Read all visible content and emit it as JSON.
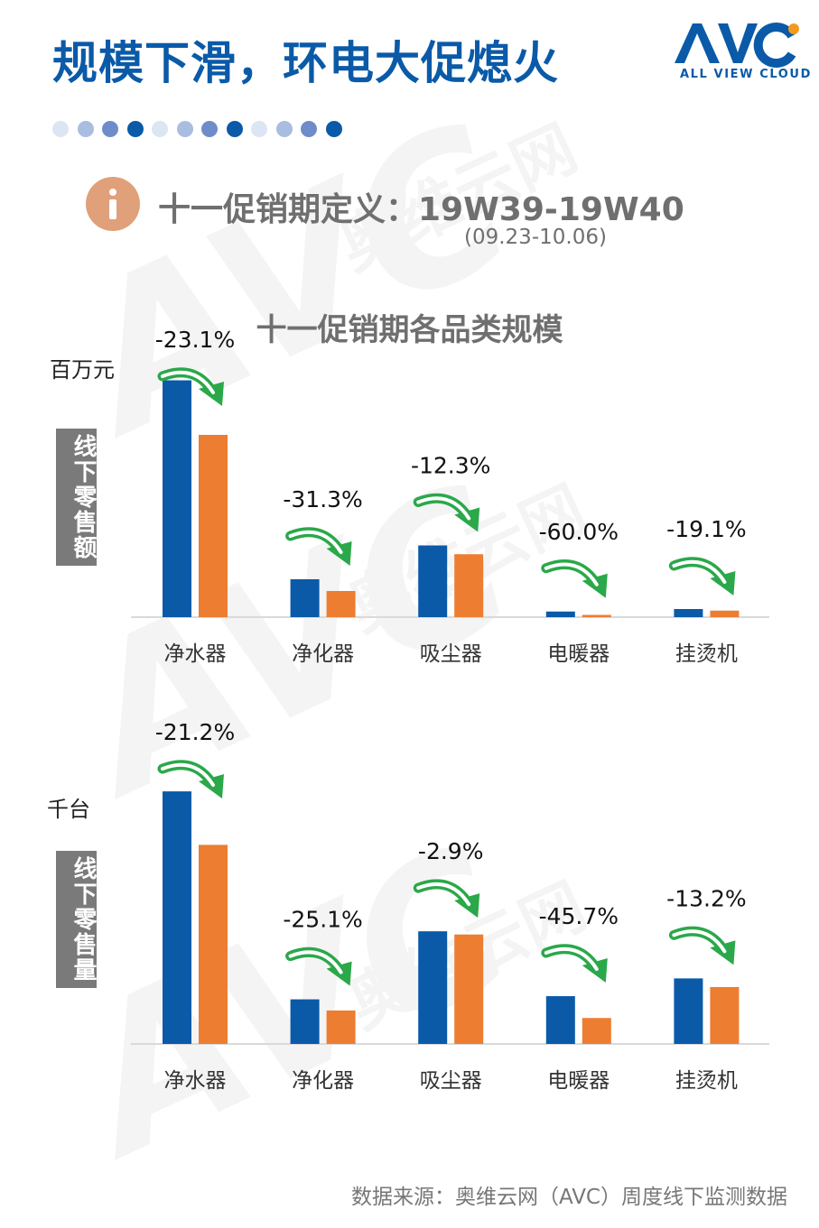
{
  "header": {
    "title": "规模下滑，环电大促熄火",
    "logo_text": "ALL VIEW CLOUD",
    "dot_colors": [
      "#dbe5f4",
      "#a9bde0",
      "#6f8cca",
      "#0a5aa8",
      "#dbe5f4",
      "#a9bde0",
      "#6f8cca",
      "#0a5aa8",
      "#dbe5f4",
      "#a9bde0",
      "#6f8cca",
      "#0a5aa8"
    ]
  },
  "info": {
    "icon": "info-icon",
    "text": "十一促销期定义：19W39-19W40",
    "sub": "(09.23-10.06)"
  },
  "chart_title": "十一促销期各品类规模",
  "footer": {
    "source": "数据来源：奥维云网（AVC）周度线下监测数据"
  },
  "colors": {
    "series_prev": "#0a5aa8",
    "series_curr": "#ed7d31",
    "arrow": "#2aa84a",
    "axis": "#d9d9d9"
  },
  "chart_data": [
    {
      "type": "bar",
      "title": "十一促销期各品类规模",
      "side_label": "线下零售额",
      "unit": "百万元",
      "categories": [
        "净水器",
        "净化器",
        "吸尘器",
        "电暖器",
        "挂烫机"
      ],
      "series": [
        {
          "values": [
            1050,
            168,
            318,
            25,
            36
          ]
        },
        {
          "values": [
            808,
            116,
            279,
            10,
            29
          ]
        }
      ],
      "changes": [
        "-23.1%",
        "-31.3%",
        "-12.3%",
        "-60.0%",
        "-19.1%"
      ],
      "ylim": [
        0,
        1100
      ],
      "grid": false,
      "legend": "none"
    },
    {
      "type": "bar",
      "side_label": "线下零售量",
      "unit": "千台",
      "categories": [
        "净水器",
        "净化器",
        "吸尘器",
        "电暖器",
        "挂烫机"
      ],
      "series": [
        {
          "values": [
            1110,
            196,
            495,
            210,
            288
          ]
        },
        {
          "values": [
            875,
            147,
            481,
            114,
            250
          ]
        }
      ],
      "changes": [
        "-21.2%",
        "-25.1%",
        "-2.9%",
        "-45.7%",
        "-13.2%"
      ],
      "ylim": [
        0,
        1150
      ],
      "grid": false,
      "legend": "none"
    }
  ]
}
